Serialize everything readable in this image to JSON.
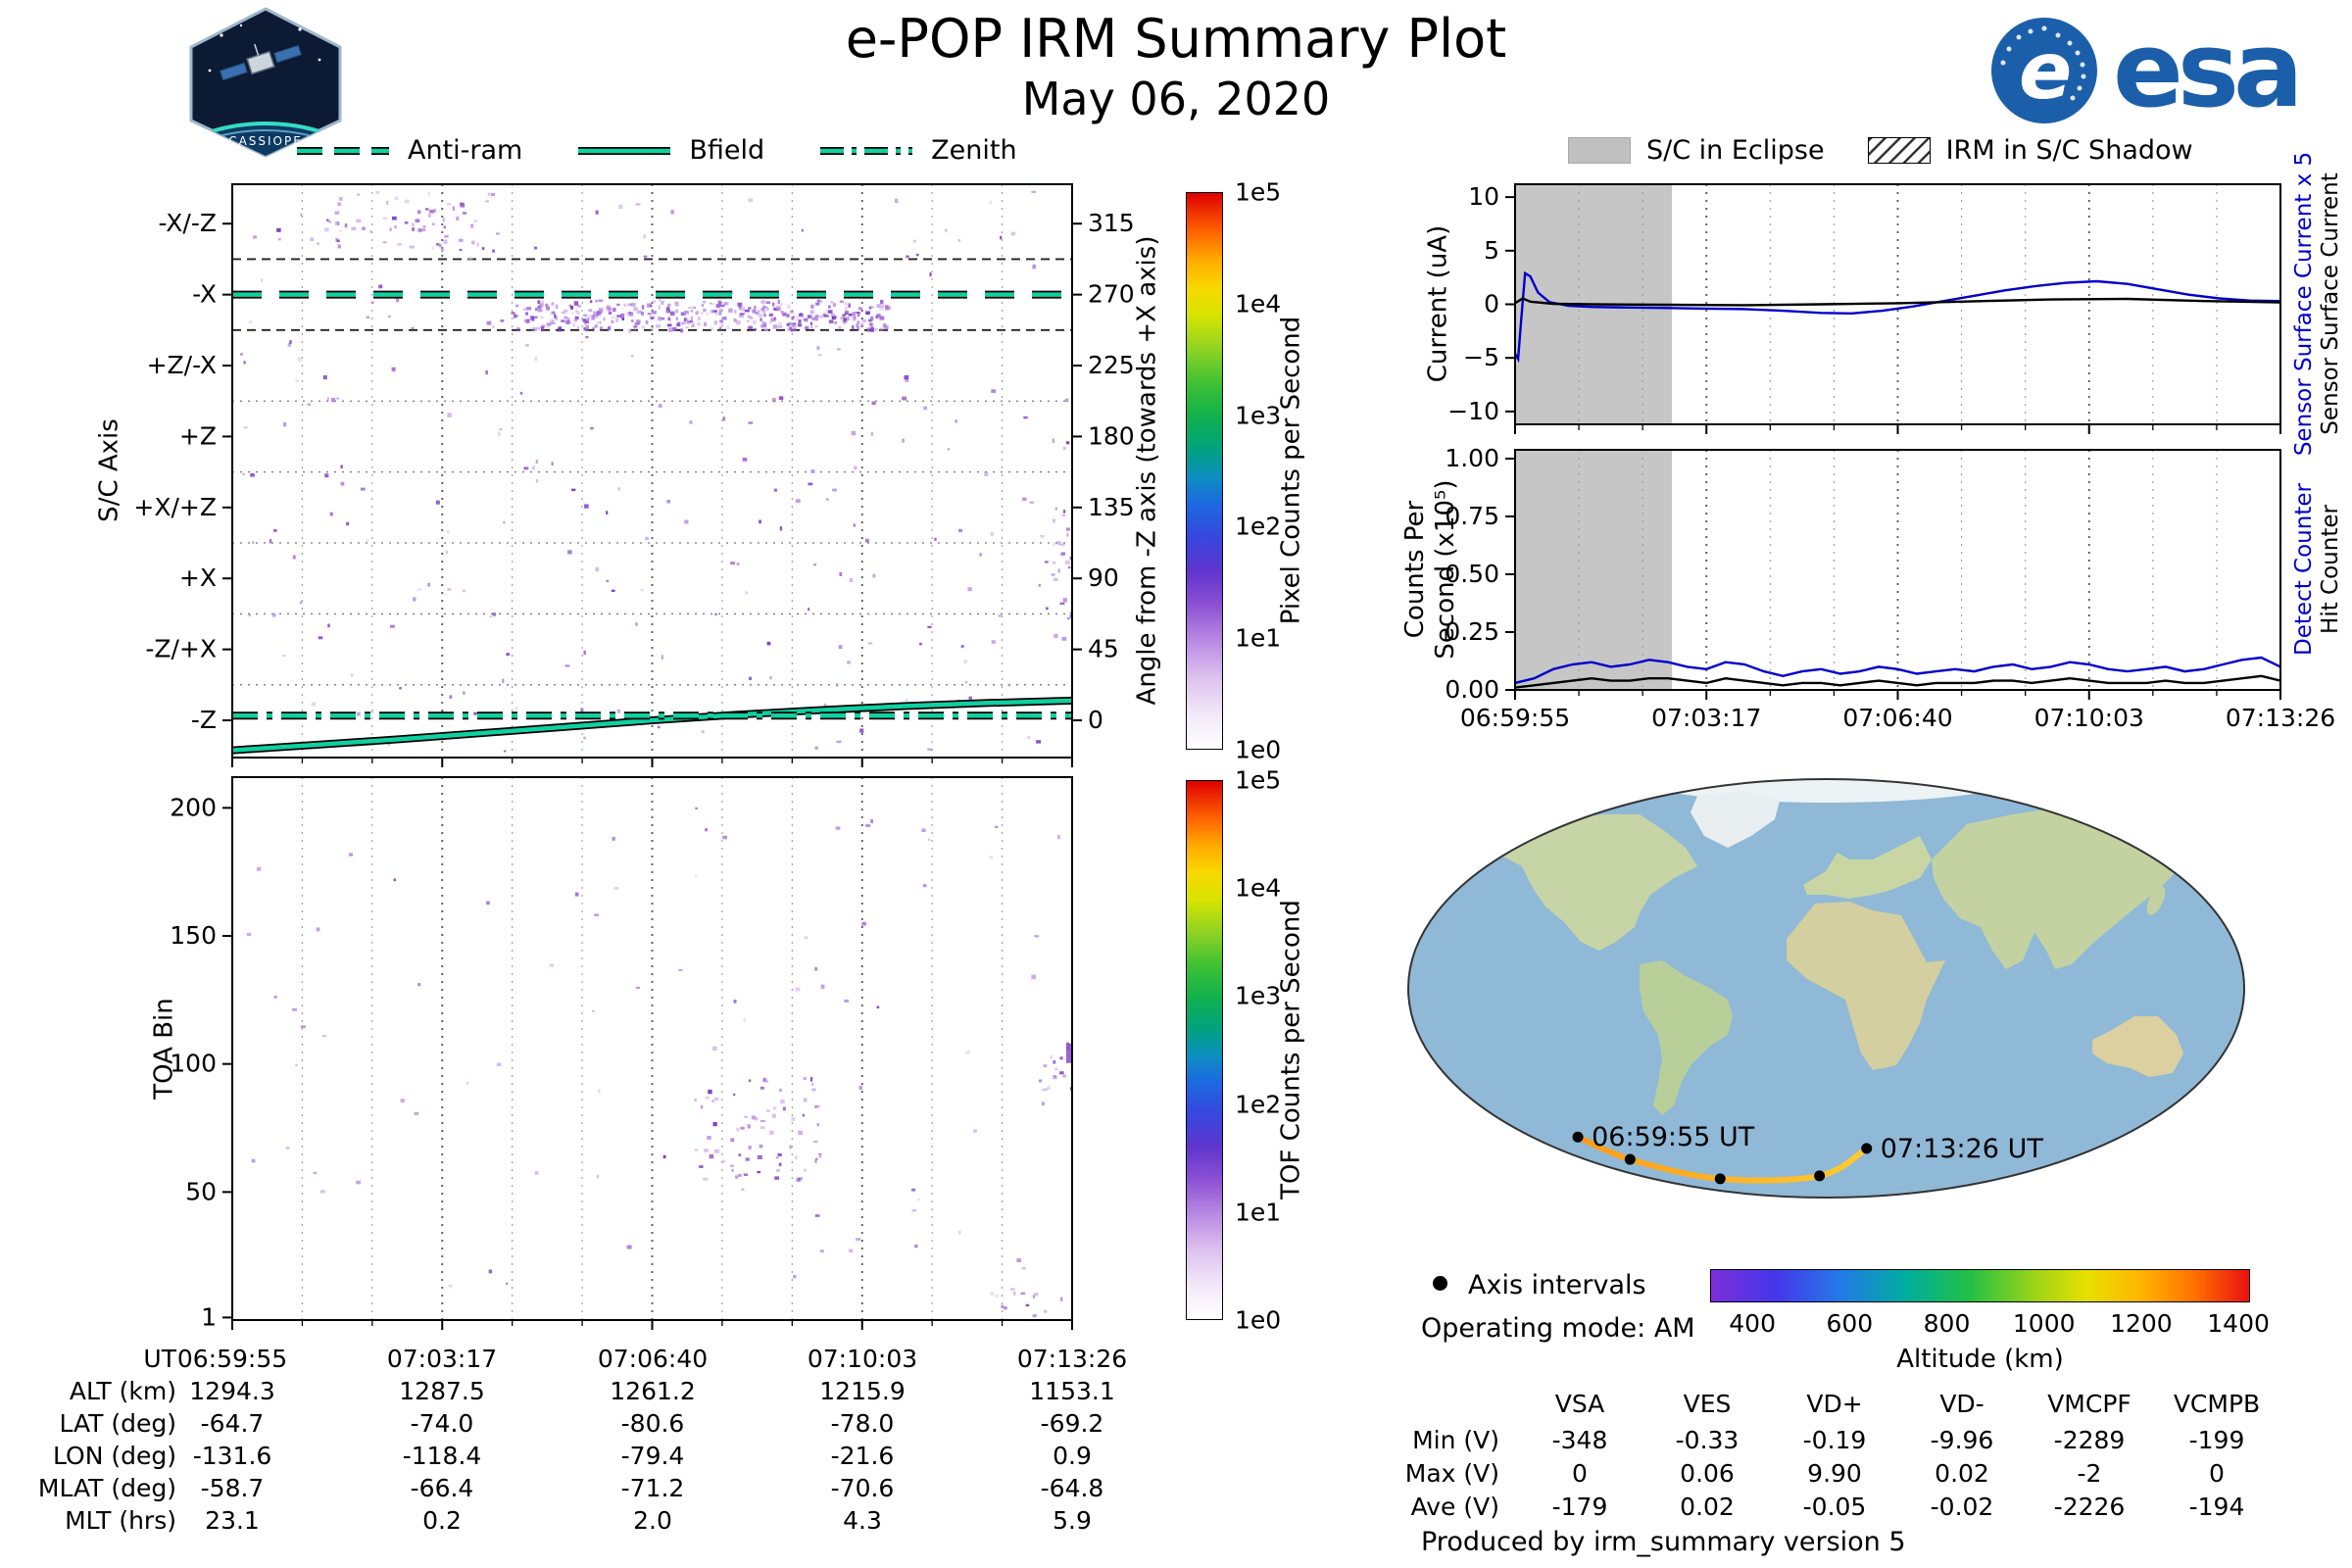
{
  "header": {
    "title": "e-POP IRM Summary Plot",
    "date": "May 06, 2020",
    "esa_text": "esa",
    "patch_text": "CASSIOPE"
  },
  "meta": {
    "operating_mode": "Operating mode: AM",
    "produced": "Produced by irm_summary version 5"
  },
  "colors": {
    "overlay": "#0fd0a0",
    "series_blue": "#0000cd",
    "eclipse_gray": "#c6c6c6",
    "noise_purple": "#9a5fd4",
    "ocean": "#8fb9d6",
    "esa_blue": "#1b5faa",
    "track_orange": "#ff9a1a",
    "track_yellow": "#ffcb30"
  },
  "eclipse_legend": [
    {
      "label": "S/C in Eclipse",
      "swatch": "gray-fill"
    },
    {
      "label": "IRM in S/C Shadow",
      "swatch": "diagonal-hatch"
    }
  ],
  "time_axis": {
    "ticks": [
      "06:59:55",
      "07:03:17",
      "07:06:40",
      "07:10:03",
      "07:13:26"
    ]
  },
  "chart_data": [
    {
      "id": "sc_axis_spectrogram",
      "type": "heatmap",
      "ylabel": "S/C Axis",
      "ylabel_right": "Angle from -Z axis (towards +X axis)",
      "x_ticks": [
        "06:59:55",
        "07:03:17",
        "07:06:40",
        "07:10:03",
        "07:13:26"
      ],
      "y_bands": [
        "-X/-Z",
        "-X",
        "+Z/-X",
        "+Z",
        "+X/+Z",
        "+X",
        "-Z/+X",
        "-Z"
      ],
      "y_band_angles": [
        315,
        270,
        225,
        180,
        135,
        90,
        45,
        0
      ],
      "y_ticks_right": [
        315,
        270,
        225,
        180,
        135,
        90,
        45,
        0
      ],
      "ylim": [
        -23.6,
        340
      ],
      "band_boundaries": [
        22.5,
        67.5,
        112.5,
        157.5,
        202.5,
        247.5,
        292.5
      ],
      "dark_boundaries": [
        247.5,
        292.5
      ],
      "colorbar": {
        "label": "Pixel Counts per Second",
        "ticks": [
          "1e5",
          "1e4",
          "1e3",
          "1e2",
          "1e1",
          "1e0"
        ]
      },
      "overlays": [
        {
          "name": "Anti-ram",
          "style": "dashed",
          "angle": 270
        },
        {
          "name": "Bfield",
          "style": "solid",
          "points": [
            [
              0,
              -19
            ],
            [
              0.1,
              -15.5
            ],
            [
              0.2,
              -12
            ],
            [
              0.3,
              -8
            ],
            [
              0.4,
              -4
            ],
            [
              0.5,
              0
            ],
            [
              0.6,
              3.5
            ],
            [
              0.7,
              6.5
            ],
            [
              0.8,
              9
            ],
            [
              0.9,
              11
            ],
            [
              1,
              12.5
            ]
          ]
        },
        {
          "name": "Zenith",
          "style": "dashdot",
          "angle": 3
        }
      ]
    },
    {
      "id": "toa_spectrogram",
      "type": "heatmap",
      "ylabel": "TOA Bin",
      "x_ticks": [
        "06:59:55",
        "07:03:17",
        "07:06:40",
        "07:10:03",
        "07:13:26"
      ],
      "y_ticks": [
        200,
        150,
        100,
        50,
        1
      ],
      "ylim": [
        0,
        212
      ],
      "colorbar": {
        "label": "TOF Counts per Second",
        "ticks": [
          "1e5",
          "1e4",
          "1e3",
          "1e2",
          "1e1",
          "1e0"
        ]
      }
    },
    {
      "id": "sensor_current",
      "type": "line",
      "ylabel": "Current (uA)",
      "ylim": [
        -11.2,
        11.2
      ],
      "y_ticks": [
        10,
        5,
        0,
        -5,
        -10
      ],
      "x_ticks": [
        "06:59:55",
        "07:03:17",
        "07:06:40",
        "07:10:03",
        "07:13:26"
      ],
      "eclipse_end_frac": 0.205,
      "right_labels": [
        {
          "text": "Sensor Surface Current x 5",
          "color": "#0000cd"
        },
        {
          "text": "Sensor Surface Current",
          "color": "#000000"
        }
      ],
      "series": [
        {
          "name": "Sensor Surface Current x 5",
          "color": "#0000cd",
          "x": [
            0,
            0.004,
            0.008,
            0.013,
            0.02,
            0.03,
            0.045,
            0.07,
            0.1,
            0.15,
            0.2,
            0.25,
            0.3,
            0.35,
            0.4,
            0.44,
            0.48,
            0.52,
            0.56,
            0.6,
            0.64,
            0.68,
            0.72,
            0.76,
            0.8,
            0.84,
            0.88,
            0.92,
            0.96,
            1
          ],
          "y": [
            -4.6,
            -5.1,
            -1.5,
            2.9,
            2.6,
            1.1,
            0.2,
            -0.15,
            -0.25,
            -0.3,
            -0.35,
            -0.4,
            -0.45,
            -0.6,
            -0.8,
            -0.85,
            -0.6,
            -0.2,
            0.3,
            0.8,
            1.3,
            1.7,
            2.0,
            2.15,
            1.9,
            1.4,
            0.9,
            0.55,
            0.35,
            0.3
          ]
        },
        {
          "name": "Sensor Surface Current",
          "color": "#000000",
          "x": [
            0,
            0.01,
            0.02,
            0.05,
            0.1,
            0.2,
            0.3,
            0.4,
            0.5,
            0.6,
            0.7,
            0.8,
            0.9,
            1
          ],
          "y": [
            0.1,
            0.55,
            0.25,
            0.05,
            0,
            -0.05,
            -0.08,
            0,
            0.1,
            0.28,
            0.45,
            0.5,
            0.3,
            0.18
          ]
        }
      ]
    },
    {
      "id": "counter_rates",
      "type": "line",
      "ylabel": "Counts Per Second (x10⁵)",
      "ylabel_lines": [
        "Counts Per",
        "Second (x10⁵)"
      ],
      "ylim": [
        0,
        1.038
      ],
      "y_ticks": [
        "1.00",
        "0.75",
        "0.50",
        "0.25",
        "0.00"
      ],
      "x_ticks": [
        "06:59:55",
        "07:03:17",
        "07:06:40",
        "07:10:03",
        "07:13:26"
      ],
      "eclipse_end_frac": 0.205,
      "right_labels": [
        {
          "text": "Detect Counter",
          "color": "#0000cd"
        },
        {
          "text": "Hit Counter",
          "color": "#000000"
        }
      ],
      "series": [
        {
          "name": "Detect Counter",
          "color": "#0000cd",
          "x_uniform": true,
          "y": [
            0.03,
            0.05,
            0.09,
            0.11,
            0.12,
            0.1,
            0.11,
            0.13,
            0.12,
            0.1,
            0.09,
            0.12,
            0.11,
            0.08,
            0.06,
            0.08,
            0.09,
            0.07,
            0.08,
            0.1,
            0.09,
            0.07,
            0.08,
            0.09,
            0.08,
            0.1,
            0.11,
            0.09,
            0.1,
            0.12,
            0.11,
            0.09,
            0.08,
            0.09,
            0.1,
            0.08,
            0.09,
            0.11,
            0.13,
            0.14,
            0.1
          ]
        },
        {
          "name": "Hit Counter",
          "color": "#000000",
          "x_uniform": true,
          "y": [
            0.01,
            0.02,
            0.03,
            0.04,
            0.05,
            0.04,
            0.04,
            0.05,
            0.05,
            0.04,
            0.03,
            0.05,
            0.04,
            0.03,
            0.02,
            0.03,
            0.03,
            0.02,
            0.03,
            0.04,
            0.03,
            0.02,
            0.03,
            0.03,
            0.03,
            0.04,
            0.04,
            0.03,
            0.04,
            0.05,
            0.04,
            0.03,
            0.03,
            0.03,
            0.04,
            0.03,
            0.03,
            0.04,
            0.05,
            0.06,
            0.04
          ]
        }
      ]
    },
    {
      "id": "ground_track_map",
      "type": "map",
      "track": {
        "start_label": "06:59:55 UT",
        "end_label": "07:13:26 UT",
        "points_frac": [
          [
            0.205,
            0.852
          ],
          [
            0.267,
            0.905
          ],
          [
            0.374,
            0.951
          ],
          [
            0.492,
            0.944
          ],
          [
            0.548,
            0.879
          ]
        ]
      },
      "legend": {
        "marker": "Axis intervals"
      },
      "altitude_colorbar": {
        "label": "Altitude (km)",
        "ticks": [
          400,
          600,
          800,
          1000,
          1200,
          1400
        ],
        "range": [
          313,
          1424
        ]
      }
    }
  ],
  "ephemeris_table": {
    "rows": [
      {
        "label": "UT",
        "values": [
          "06:59:55",
          "07:03:17",
          "07:06:40",
          "07:10:03",
          "07:13:26"
        ]
      },
      {
        "label": "ALT (km)",
        "values": [
          "1294.3",
          "1287.5",
          "1261.2",
          "1215.9",
          "1153.1"
        ]
      },
      {
        "label": "LAT (deg)",
        "values": [
          "-64.7",
          "-74.0",
          "-80.6",
          "-78.0",
          "-69.2"
        ]
      },
      {
        "label": "LON (deg)",
        "values": [
          "-131.6",
          "-118.4",
          "-79.4",
          "-21.6",
          "0.9"
        ]
      },
      {
        "label": "MLAT (deg)",
        "values": [
          "-58.7",
          "-66.4",
          "-71.2",
          "-70.6",
          "-64.8"
        ]
      },
      {
        "label": "MLT (hrs)",
        "values": [
          "23.1",
          "0.2",
          "2.0",
          "4.3",
          "5.9"
        ]
      }
    ]
  },
  "voltage_table": {
    "columns": [
      "VSA",
      "VES",
      "VD+",
      "VD-",
      "VMCPF",
      "VCMPB"
    ],
    "rows": [
      {
        "label": "Min (V)",
        "values": [
          "-348",
          "-0.33",
          "-0.19",
          "-9.96",
          "-2289",
          "-199"
        ]
      },
      {
        "label": "Max (V)",
        "values": [
          "0",
          "0.06",
          "9.90",
          "0.02",
          "-2",
          "0"
        ]
      },
      {
        "label": "Ave (V)",
        "values": [
          "-179",
          "0.02",
          "-0.05",
          "-0.02",
          "-2226",
          "-194"
        ]
      }
    ]
  }
}
